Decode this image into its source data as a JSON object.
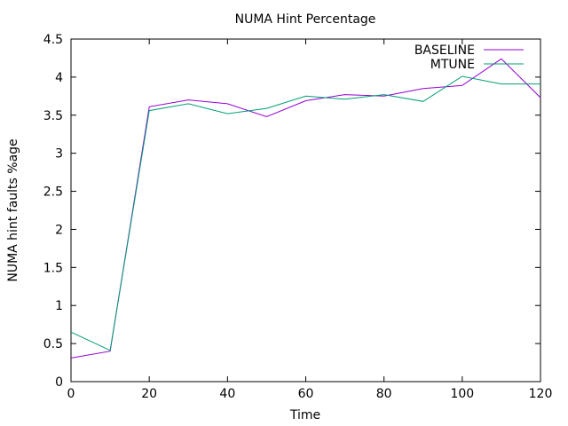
{
  "chart_data": {
    "type": "line",
    "title": "NUMA Hint Percentage",
    "xlabel": "Time",
    "ylabel": "NUMA hint faults %age",
    "xlim": [
      0,
      120
    ],
    "ylim": [
      0,
      4.5
    ],
    "xticks": [
      "0",
      "20",
      "40",
      "60",
      "80",
      "100",
      "120"
    ],
    "yticks": [
      "0",
      "0.5",
      "1",
      "1.5",
      "2",
      "2.5",
      "3",
      "3.5",
      "4",
      "4.5"
    ],
    "grid": false,
    "legend_position": "top-right",
    "x": [
      0,
      10,
      20,
      30,
      40,
      50,
      60,
      70,
      80,
      90,
      100,
      110,
      120
    ],
    "series": [
      {
        "name": "BASELINE",
        "color": "#9400d3",
        "values": [
          0.31,
          0.4,
          3.61,
          3.7,
          3.65,
          3.48,
          3.69,
          3.77,
          3.75,
          3.85,
          3.89,
          4.24,
          3.73
        ]
      },
      {
        "name": "MTUNE",
        "color": "#009e73",
        "values": [
          0.65,
          0.41,
          3.56,
          3.65,
          3.52,
          3.59,
          3.75,
          3.71,
          3.77,
          3.68,
          4.01,
          3.91,
          3.91
        ]
      }
    ]
  }
}
